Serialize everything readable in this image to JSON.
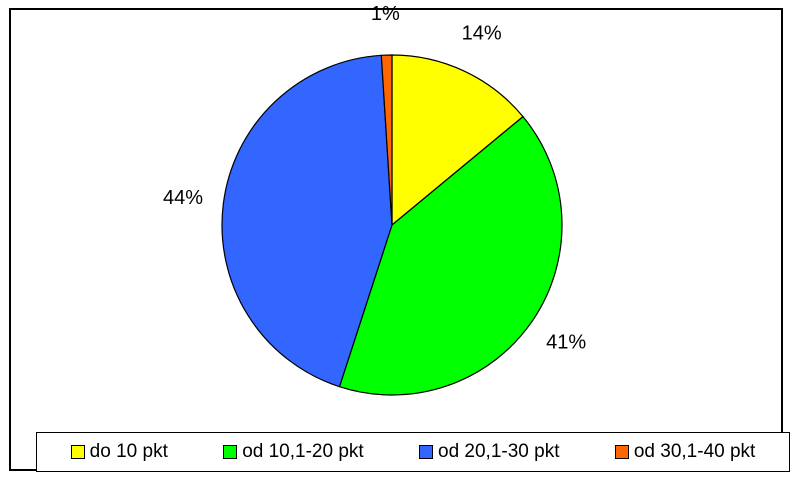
{
  "chart_data": {
    "type": "pie",
    "title": "",
    "categories": [
      "do 10 pkt",
      "od 10,1-20 pkt",
      "od 20,1-30 pkt",
      "od 30,1-40 pkt"
    ],
    "values": [
      14,
      41,
      44,
      1
    ],
    "labels": [
      "14%",
      "41%",
      "44%",
      "1%"
    ],
    "colors": [
      "#FFFF00",
      "#00FF00",
      "#3366FF",
      "#FF6600"
    ],
    "start": "12 o'clock",
    "direction": "clockwise",
    "legend_position": "bottom"
  }
}
